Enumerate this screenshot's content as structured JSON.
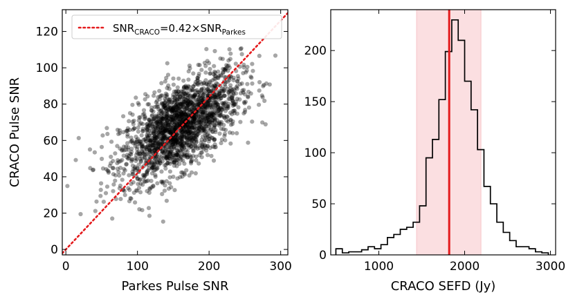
{
  "chart_data": [
    {
      "type": "scatter",
      "xlabel": "Parkes Pulse SNR",
      "ylabel": "CRACO Pulse SNR",
      "xlim": [
        -5,
        310
      ],
      "ylim": [
        -3,
        132
      ],
      "xticks": [
        0,
        100,
        200,
        300
      ],
      "yticks": [
        0,
        20,
        40,
        60,
        80,
        100,
        120
      ],
      "series": [
        {
          "kind": "points",
          "color": "#000000",
          "opacity": 0.35,
          "count": 2000,
          "center": [
            160,
            68
          ],
          "spread": [
            42,
            15
          ],
          "correlation": 0.62,
          "range_x": [
            0,
            305
          ],
          "range_y": [
            10,
            120
          ]
        }
      ],
      "legend": {
        "position": "top-right",
        "entries": [
          {
            "text": "SNR",
            "sub1": "CRACO",
            "mid": "=0.42×SNR",
            "sub2": "Parkes"
          }
        ]
      },
      "reference_line": {
        "slope": 0.42,
        "intercept": 0,
        "color": "#e41a1c",
        "style": "dotted"
      }
    },
    {
      "type": "histogram",
      "xlabel": "CRACO SEFD (Jy)",
      "ylabel": "",
      "xlim": [
        440,
        3060
      ],
      "ylim": [
        0,
        240
      ],
      "xticks": [
        1000,
        2000,
        3000
      ],
      "yticks": [
        0,
        50,
        100,
        150,
        200
      ],
      "bin_edges": [
        500,
        575,
        650,
        725,
        800,
        875,
        950,
        1025,
        1100,
        1175,
        1250,
        1325,
        1400,
        1475,
        1550,
        1625,
        1700,
        1775,
        1850,
        1925,
        2000,
        2075,
        2150,
        2225,
        2300,
        2375,
        2450,
        2525,
        2600,
        2675,
        2750,
        2825,
        2900,
        2975
      ],
      "counts": [
        6,
        2,
        3,
        3,
        5,
        8,
        6,
        10,
        17,
        20,
        25,
        27,
        32,
        48,
        95,
        113,
        152,
        199,
        230,
        210,
        170,
        142,
        103,
        67,
        50,
        32,
        22,
        14,
        8,
        8,
        6,
        3,
        2
      ],
      "vline": {
        "x": 1820,
        "color": "#e41a1c"
      },
      "band": {
        "x0": 1440,
        "x1": 2190,
        "color": "#f7c5c9"
      }
    }
  ]
}
